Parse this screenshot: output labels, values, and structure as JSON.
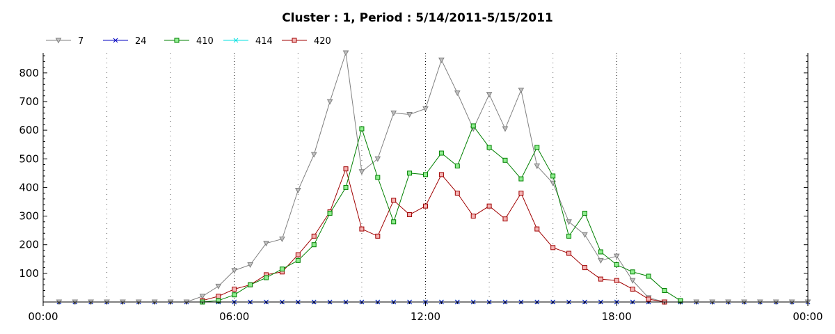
{
  "chart_data": {
    "type": "line",
    "title": "Cluster : 1, Period : 5/14/2011-5/15/2011",
    "xlabel": "",
    "ylabel": "",
    "x_ticks": [
      "00:00",
      "06:00",
      "12:00",
      "18:00",
      "00:00"
    ],
    "x_range_hours": [
      0,
      24
    ],
    "y_ticks": [
      100,
      200,
      300,
      400,
      500,
      600,
      700,
      800
    ],
    "ylim": [
      0,
      870
    ],
    "grid": "vertical dotted lines every 2 hours",
    "legend_position": "top-left",
    "series": [
      {
        "name": "7",
        "color": "#808080",
        "marker": "triangle-down",
        "x_hours": [
          0.5,
          1.0,
          1.5,
          2.0,
          2.5,
          3.0,
          3.5,
          4.0,
          4.5,
          5.0,
          5.5,
          6.0,
          6.5,
          7.0,
          7.5,
          8.0,
          8.5,
          9.0,
          9.5,
          10.0,
          10.5,
          11.0,
          11.5,
          12.0,
          12.5,
          13.0,
          13.5,
          14.0,
          14.5,
          15.0,
          15.5,
          16.0,
          16.5,
          17.0,
          17.5,
          18.0,
          18.5,
          19.0,
          19.5,
          20.0,
          20.5,
          21.0,
          21.5,
          22.0,
          22.5,
          23.0,
          23.5,
          24.0
        ],
        "values": [
          0,
          0,
          0,
          0,
          0,
          0,
          0,
          0,
          0,
          20,
          55,
          110,
          130,
          205,
          220,
          390,
          515,
          700,
          870,
          455,
          500,
          660,
          655,
          675,
          845,
          730,
          605,
          725,
          605,
          740,
          475,
          415,
          280,
          235,
          145,
          160,
          75,
          15,
          0,
          0,
          0,
          0,
          0,
          0,
          0,
          0,
          0,
          0
        ]
      },
      {
        "name": "24",
        "color": "#0000c0",
        "marker": "x",
        "x_hours": [
          0.5,
          1.0,
          1.5,
          2.0,
          2.5,
          3.0,
          3.5,
          4.0,
          4.5,
          5.0,
          5.5,
          6.0,
          6.5,
          7.0,
          7.5,
          8.0,
          8.5,
          9.0,
          9.5,
          10.0,
          10.5,
          11.0,
          11.5,
          12.0,
          12.5,
          13.0,
          13.5,
          14.0,
          14.5,
          15.0,
          15.5,
          16.0,
          16.5,
          17.0,
          17.5,
          18.0,
          18.5,
          19.0,
          19.5,
          20.0,
          20.5,
          21.0,
          21.5,
          22.0,
          22.5,
          23.0,
          23.5,
          24.0
        ],
        "values": [
          0,
          0,
          0,
          0,
          0,
          0,
          0,
          0,
          0,
          0,
          0,
          0,
          0,
          0,
          0,
          0,
          0,
          0,
          0,
          0,
          0,
          0,
          0,
          0,
          0,
          0,
          0,
          0,
          0,
          0,
          0,
          0,
          0,
          0,
          0,
          0,
          0,
          0,
          0,
          0,
          0,
          0,
          0,
          0,
          0,
          0,
          0,
          0
        ]
      },
      {
        "name": "410",
        "color": "#008000",
        "marker": "square",
        "fill": "#90ee90",
        "x_hours": [
          5.0,
          5.5,
          6.0,
          6.5,
          7.0,
          7.5,
          8.0,
          8.5,
          9.0,
          9.5,
          10.0,
          10.5,
          11.0,
          11.5,
          12.0,
          12.5,
          13.0,
          13.5,
          14.0,
          14.5,
          15.0,
          15.5,
          16.0,
          16.5,
          17.0,
          17.5,
          18.0,
          18.5,
          19.0,
          19.5,
          20.0
        ],
        "values": [
          0,
          5,
          25,
          60,
          85,
          115,
          145,
          200,
          310,
          400,
          605,
          435,
          280,
          450,
          445,
          520,
          475,
          615,
          540,
          495,
          430,
          540,
          440,
          230,
          310,
          175,
          130,
          105,
          90,
          40,
          5
        ]
      },
      {
        "name": "414",
        "color": "#00e0e0",
        "marker": "x",
        "x_hours": [
          0.5,
          1.0,
          1.5,
          2.0,
          2.5,
          3.0,
          3.5,
          4.0,
          4.5,
          5.0,
          5.5,
          6.0,
          6.5,
          7.0,
          7.5,
          8.0,
          8.5,
          9.0,
          9.5,
          10.0,
          10.5,
          11.0,
          11.5,
          12.0,
          12.5,
          13.0,
          13.5,
          14.0,
          14.5,
          15.0,
          15.5,
          16.0,
          16.5,
          17.0,
          17.5,
          18.0,
          18.5,
          19.0,
          19.5,
          20.0,
          20.5,
          21.0,
          21.5,
          22.0,
          22.5,
          23.0,
          23.5,
          24.0
        ],
        "values": [
          0,
          0,
          0,
          0,
          0,
          0,
          0,
          0,
          0,
          0,
          0,
          0,
          0,
          0,
          0,
          0,
          0,
          0,
          0,
          0,
          0,
          0,
          0,
          0,
          0,
          0,
          0,
          0,
          0,
          0,
          0,
          0,
          0,
          0,
          0,
          0,
          0,
          0,
          0,
          0,
          0,
          0,
          0,
          0,
          0,
          0,
          0,
          0
        ]
      },
      {
        "name": "420",
        "color": "#a00000",
        "marker": "square",
        "fill": "#f4b4b4",
        "x_hours": [
          5.0,
          5.5,
          6.0,
          6.5,
          7.0,
          7.5,
          8.0,
          8.5,
          9.0,
          9.5,
          10.0,
          10.5,
          11.0,
          11.5,
          12.0,
          12.5,
          13.0,
          13.5,
          14.0,
          14.5,
          15.0,
          15.5,
          16.0,
          16.5,
          17.0,
          17.5,
          18.0,
          18.5,
          19.0,
          19.5
        ],
        "values": [
          5,
          20,
          45,
          60,
          95,
          105,
          165,
          230,
          315,
          465,
          255,
          230,
          355,
          305,
          335,
          445,
          380,
          300,
          335,
          290,
          380,
          255,
          190,
          170,
          120,
          80,
          75,
          45,
          10,
          0
        ]
      }
    ]
  }
}
